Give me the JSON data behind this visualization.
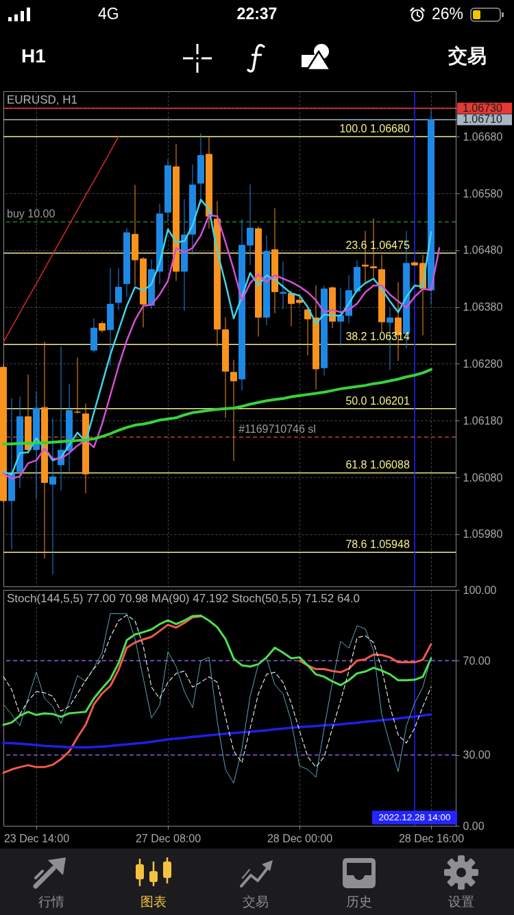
{
  "chart_data": [
    {
      "type": "candlestick",
      "title": "EURUSD, H1",
      "categories": [
        null,
        null,
        null,
        null,
        "23 Dec 14:00",
        null,
        null,
        null,
        null,
        null,
        null,
        null,
        null,
        null,
        null,
        null,
        null,
        null,
        null,
        null,
        "27 Dec 08:00",
        null,
        null,
        null,
        null,
        null,
        null,
        null,
        null,
        null,
        null,
        null,
        null,
        null,
        null,
        null,
        "28 Dec 00:00",
        null,
        null,
        null,
        null,
        null,
        null,
        null,
        null,
        null,
        null,
        null,
        null,
        null,
        "2022.12.28 14:00",
        null,
        "28 Dec 16:00",
        null,
        null,
        null
      ],
      "ohlc": [
        [
          1.06274,
          1.0628,
          1.06036,
          1.06039
        ],
        [
          1.06039,
          1.0622,
          1.05953,
          1.06087
        ],
        [
          1.0609,
          1.06222,
          1.06061,
          1.06187
        ],
        [
          1.06187,
          1.06261,
          1.06125,
          1.06129
        ],
        [
          1.06129,
          1.06232,
          1.06042,
          1.06202
        ],
        [
          1.06203,
          1.06319,
          1.05937,
          1.06071
        ],
        [
          1.06068,
          1.06184,
          1.05909,
          1.06081
        ],
        [
          1.06102,
          1.06311,
          1.06057,
          1.06128
        ],
        [
          1.06127,
          1.06245,
          1.0609,
          1.06198
        ],
        [
          1.06195,
          1.06291,
          1.06192,
          1.06195
        ],
        [
          1.06192,
          1.0621,
          1.06052,
          1.06086
        ],
        [
          1.06304,
          1.0636,
          1.063,
          1.06343
        ],
        [
          1.06351,
          1.06355,
          1.06335,
          1.06339
        ],
        [
          1.0634,
          1.06449,
          1.06276,
          1.06385
        ],
        [
          1.06388,
          1.06449,
          1.06375,
          1.06415
        ],
        [
          1.06421,
          1.06519,
          1.06398,
          1.06511
        ],
        [
          1.06508,
          1.06595,
          1.06418,
          1.06463
        ],
        [
          1.06465,
          1.06468,
          1.06344,
          1.06385
        ],
        [
          1.06383,
          1.06464,
          1.06377,
          1.06446
        ],
        [
          1.06443,
          1.06562,
          1.0642,
          1.06544
        ],
        [
          1.06547,
          1.0664,
          1.0653,
          1.06629
        ],
        [
          1.06627,
          1.06667,
          1.06426,
          1.06443
        ],
        [
          1.06443,
          1.0657,
          1.06373,
          1.06507
        ],
        [
          1.06508,
          1.06631,
          1.06472,
          1.06595
        ],
        [
          1.06598,
          1.06686,
          1.06562,
          1.06647
        ],
        [
          1.06649,
          1.06679,
          1.06518,
          1.0654
        ],
        [
          1.06535,
          1.06566,
          1.06311,
          1.06341
        ],
        [
          1.0634,
          1.06362,
          1.06185,
          1.06267
        ],
        [
          1.06265,
          1.06287,
          1.06109,
          1.0625
        ],
        [
          1.06253,
          1.06535,
          1.06233,
          1.06489
        ],
        [
          1.06489,
          1.06596,
          1.06454,
          1.06519
        ],
        [
          1.06518,
          1.06522,
          1.06328,
          1.06362
        ],
        [
          1.06362,
          1.06506,
          1.06348,
          1.06478
        ],
        [
          1.06481,
          1.06554,
          1.06369,
          1.06407
        ],
        [
          1.06404,
          1.0646,
          1.06376,
          1.06406
        ],
        [
          1.06404,
          1.06408,
          1.06346,
          1.06386
        ],
        [
          1.06392,
          1.06398,
          1.06384,
          1.06388
        ],
        [
          1.06375,
          1.06378,
          1.06295,
          1.06359
        ],
        [
          1.06361,
          1.06418,
          1.06235,
          1.06271
        ],
        [
          1.06273,
          1.06418,
          1.06259,
          1.06412
        ],
        [
          1.06414,
          1.06416,
          1.06343,
          1.06355
        ],
        [
          1.06355,
          1.06414,
          1.06311,
          1.06365
        ],
        [
          1.06365,
          1.06436,
          1.06351,
          1.06409
        ],
        [
          1.06408,
          1.06462,
          1.06405,
          1.0645
        ],
        [
          1.06454,
          1.06514,
          1.06422,
          1.06452
        ],
        [
          1.06451,
          1.06536,
          1.0643,
          1.06449
        ],
        [
          1.06446,
          1.06472,
          1.06335,
          1.06354
        ],
        [
          1.06353,
          1.06378,
          1.06269,
          1.06361
        ],
        [
          1.06361,
          1.06424,
          1.06285,
          1.06331
        ],
        [
          1.06333,
          1.06514,
          1.06307,
          1.06457
        ],
        [
          1.06458,
          1.0646,
          1.06452,
          1.06454
        ],
        [
          1.06457,
          1.06472,
          1.0633,
          1.06413
        ],
        [
          1.0641,
          1.06728,
          1.06384,
          1.0671
        ],
        null,
        null,
        null
      ],
      "colors": [
        "#f7931e",
        "#1e88e5",
        "#1e88e5",
        "#f7931e",
        "#1e88e5",
        "#f7931e",
        "#1e88e5",
        "#1e88e5",
        "#1e88e5",
        "#f7931e",
        "#f7931e",
        "#1e88e5",
        "#f7931e",
        "#1e88e5",
        "#1e88e5",
        "#1e88e5",
        "#f7931e",
        "#f7931e",
        "#1e88e5",
        "#1e88e5",
        "#1e88e5",
        "#f7931e",
        "#1e88e5",
        "#1e88e5",
        "#1e88e5",
        "#f7931e",
        "#f7931e",
        "#f7931e",
        "#f7931e",
        "#1e88e5",
        "#1e88e5",
        "#f7931e",
        "#1e88e5",
        "#f7931e",
        "#1e88e5",
        "#f7931e",
        "#f7931e",
        "#f7931e",
        "#f7931e",
        "#1e88e5",
        "#f7931e",
        "#1e88e5",
        "#1e88e5",
        "#1e88e5",
        "#f7931e",
        "#f7931e",
        "#f7931e",
        "#1e88e5",
        "#f7931e",
        "#1e88e5",
        "#f7931e",
        "#f7931e",
        "#1e88e5",
        null,
        null,
        null
      ],
      "series": [
        {
          "type": "line",
          "color": "#3fd3ea",
          "values": [
            1.0609,
            1.06085,
            1.06123,
            1.06124,
            1.06149,
            1.06131,
            1.0611,
            1.06115,
            1.06137,
            1.06159,
            1.06143,
            1.06194,
            1.06245,
            1.06296,
            1.06339,
            1.06382,
            1.06415,
            1.06409,
            1.0642,
            1.06458,
            1.06517,
            1.06494,
            1.06496,
            1.06524,
            1.06569,
            1.06552,
            1.06478,
            1.06422,
            1.0636,
            1.06398,
            1.0644,
            1.06418,
            1.06436,
            1.06428,
            1.06416,
            1.06404,
            1.064,
            1.0638,
            1.06351,
            1.06367,
            1.06365,
            1.06365,
            1.06386,
            1.0641,
            1.06422,
            1.0643,
            1.06412,
            1.0639,
            1.06371,
            1.06398,
            1.06418,
            1.06416,
            1.06512,
            null,
            null,
            null
          ]
        },
        {
          "type": "line",
          "color": "#d64fd6",
          "values": [
            1.06087,
            1.06078,
            1.06082,
            1.06105,
            1.0611,
            1.06131,
            1.06113,
            1.06113,
            1.06123,
            1.06136,
            1.06146,
            1.06133,
            1.06174,
            1.06225,
            1.06276,
            1.06321,
            1.06357,
            1.06382,
            1.06384,
            1.06402,
            1.06426,
            1.06484,
            1.06476,
            1.06484,
            1.06506,
            1.06542,
            1.0654,
            1.06494,
            1.06446,
            1.06392,
            1.06422,
            1.06438,
            1.06424,
            1.06436,
            1.0643,
            1.06424,
            1.06416,
            1.06406,
            1.06392,
            1.06371,
            1.06375,
            1.06371,
            1.06375,
            1.06386,
            1.06406,
            1.06418,
            1.06418,
            1.06402,
            1.0639,
            1.06379,
            1.06398,
            1.06412,
            1.0641,
            1.06484,
            null,
            null
          ]
        },
        {
          "type": "line",
          "color": "#39d239",
          "values": [
            1.06139,
            1.06139,
            1.0614,
            1.0614,
            1.06141,
            1.06141,
            1.06142,
            1.06143,
            1.06144,
            1.06145,
            1.06146,
            1.06148,
            1.06152,
            1.06157,
            1.06163,
            1.06168,
            1.06172,
            1.06174,
            1.06177,
            1.06181,
            1.06183,
            1.06185,
            1.0619,
            1.06194,
            1.06196,
            1.06198,
            1.062,
            1.06201,
            1.06202,
            1.06205,
            1.06209,
            1.06212,
            1.06215,
            1.06217,
            1.06219,
            1.06222,
            1.06224,
            1.06226,
            1.06228,
            1.0623,
            1.06233,
            1.06236,
            1.06238,
            1.0624,
            1.06242,
            1.06245,
            1.06247,
            1.0625,
            1.06253,
            1.06257,
            1.0626,
            1.06264,
            1.0627,
            null,
            null,
            null
          ]
        },
        {
          "type": "line",
          "color": "#d82a2a",
          "values": [
            1.06318,
            1.06344,
            1.0637,
            1.06396,
            1.06421,
            1.06447,
            1.06473,
            1.06499,
            1.06525,
            1.06551,
            1.06577,
            1.06602,
            1.06628,
            1.06654,
            1.0668,
            null,
            null,
            null,
            null,
            null,
            null,
            null,
            null,
            null,
            null,
            null,
            null,
            null,
            null,
            null,
            null,
            null,
            null,
            null,
            null,
            null,
            null,
            null,
            null,
            null,
            null,
            null,
            null,
            null,
            null,
            null,
            null,
            null,
            null,
            null,
            null,
            null,
            null,
            null,
            null,
            null
          ]
        }
      ],
      "ylim": [
        1.05888,
        1.0676
      ],
      "yticks": [
        {
          "value": 1.0598,
          "label": "1.05980"
        },
        {
          "value": 1.0608,
          "label": "1.06080"
        },
        {
          "value": 1.0618,
          "label": "1.06180"
        },
        {
          "value": 1.0628,
          "label": "1.06280"
        },
        {
          "value": 1.0638,
          "label": "1.06380"
        },
        {
          "value": 1.0648,
          "label": "1.06480"
        },
        {
          "value": 1.0658,
          "label": "1.06580"
        },
        {
          "value": 1.0668,
          "label": "1.06680"
        },
        {
          "value": 1.0671,
          "label": "1.06710"
        },
        {
          "value": 1.0673,
          "label": "1.06730"
        }
      ],
      "tick_labels": "y",
      "grid": true,
      "ref_lines": [
        {
          "axis": "y",
          "value": 1.0673,
          "color": "#e53935"
        },
        {
          "axis": "y",
          "value": 1.0671,
          "color": "#a9b6c4"
        },
        {
          "axis": "y",
          "value": 1.0668,
          "label": "100.0 1.06680",
          "color": "#f4ee8c"
        },
        {
          "axis": "y",
          "value": 1.06475,
          "label": "23.6 1.06475",
          "color": "#f4ee8c"
        },
        {
          "axis": "y",
          "value": 1.06314,
          "label": "38.2 1.06314",
          "color": "#f4ee8c"
        },
        {
          "axis": "y",
          "value": 1.06201,
          "label": "50.0 1.06201",
          "color": "#f4ee8c"
        },
        {
          "axis": "y",
          "value": 1.06088,
          "label": "61.8 1.06088",
          "color": "#f4ee8c"
        },
        {
          "axis": "y",
          "value": 1.05948,
          "label": "78.6 1.05948",
          "color": "#f4ee8c"
        },
        {
          "axis": "y",
          "value": 1.0653,
          "label": "buy 10.00",
          "color": "#2e7d32",
          "line_style": "dashed"
        },
        {
          "axis": "y",
          "value": 1.06151,
          "label": "#1169710746 sl",
          "color": "#b5452c",
          "line_style": "dashed"
        },
        {
          "axis": "x",
          "value": "2022.12.28 14:00",
          "color": "#2424ff"
        }
      ],
      "annotations": [
        "4G",
        "22:37",
        "26%",
        "H1",
        "交易"
      ]
    },
    {
      "type": "line",
      "title": "Stoch(144,5,5) 77.00 70.98 MA(90) 47.192 Stoch(50,5,5) 71.52 64.0",
      "categories": [
        null,
        null,
        null,
        null,
        "23 Dec 14:00",
        null,
        null,
        null,
        null,
        null,
        null,
        null,
        null,
        null,
        null,
        null,
        null,
        null,
        null,
        null,
        "27 Dec 08:00",
        null,
        null,
        null,
        null,
        null,
        null,
        null,
        null,
        null,
        null,
        null,
        null,
        null,
        null,
        null,
        "28 Dec 00:00",
        null,
        null,
        null,
        null,
        null,
        null,
        null,
        null,
        null,
        null,
        null,
        null,
        null,
        "2022.12.28 14:00",
        null,
        "28 Dec 16:00",
        null,
        null,
        null
      ],
      "series": [
        {
          "color": "#f0594c",
          "values": [
            22.5,
            23.9,
            24.9,
            25.7,
            24.9,
            24.9,
            25.9,
            28.3,
            31.5,
            37.5,
            42.8,
            51.5,
            56.1,
            59.3,
            66.1,
            75.5,
            77.7,
            79.0,
            80.1,
            82.6,
            85.2,
            84.0,
            86.0,
            88.4,
            88.8,
            null,
            null,
            null,
            null,
            null,
            null,
            null,
            null,
            null,
            null,
            null,
            70.0,
            68.0,
            66.4,
            66.4,
            65.6,
            65.1,
            66.6,
            70.0,
            70.6,
            72.6,
            72.4,
            71.4,
            69.3,
            69.3,
            69.3,
            70.4,
            77.0,
            null,
            null,
            null
          ]
        },
        {
          "color": "#4fe04f",
          "values": [
            42.8,
            43.8,
            46.7,
            48.3,
            47.0,
            47.7,
            47.4,
            46.2,
            47.7,
            48.0,
            48.3,
            54.0,
            58.3,
            62.2,
            69.0,
            78.7,
            81.1,
            82.1,
            83.2,
            85.5,
            87.1,
            85.5,
            87.0,
            88.9,
            89.1,
            87.0,
            84.2,
            79.2,
            70.9,
            68.0,
            67.5,
            68.5,
            71.4,
            75.5,
            73.4,
            71.0,
            71.4,
            68.0,
            64.2,
            63.2,
            61.2,
            59.6,
            61.7,
            64.6,
            65.4,
            67.0,
            65.8,
            64.2,
            61.7,
            61.7,
            61.9,
            63.2,
            71.0,
            null,
            null,
            null
          ]
        },
        {
          "color": "#1f1fe8",
          "values": [
            35.1,
            35.0,
            34.8,
            34.5,
            34.2,
            33.9,
            33.7,
            33.5,
            33.3,
            33.3,
            33.3,
            33.4,
            33.6,
            33.9,
            34.2,
            34.5,
            34.9,
            35.2,
            35.6,
            36.1,
            36.6,
            37.0,
            37.3,
            37.7,
            38.0,
            38.4,
            38.7,
            39.0,
            39.3,
            39.6,
            39.9,
            40.2,
            40.5,
            40.9,
            41.2,
            41.6,
            41.9,
            42.1,
            42.3,
            42.6,
            42.8,
            43.0,
            43.4,
            43.7,
            44.1,
            44.4,
            44.8,
            45.1,
            45.5,
            45.9,
            46.3,
            46.8,
            47.2,
            null,
            null,
            null
          ]
        },
        {
          "color": "#5aa6bd",
          "values": [
            51.5,
            47.2,
            42.4,
            54.0,
            65.1,
            54.0,
            50.6,
            43.3,
            53.0,
            63.7,
            61.2,
            67.1,
            73.3,
            90.0,
            89.9,
            89.9,
            79.2,
            62.7,
            45.7,
            51.1,
            73.8,
            67.5,
            56.9,
            50.1,
            70.0,
            71.4,
            44.3,
            23.9,
            18.1,
            32.6,
            54.9,
            68.5,
            70.9,
            59.8,
            55.9,
            44.3,
            25.4,
            23.9,
            20.6,
            41.4,
            60.8,
            78.2,
            75.3,
            84.8,
            83.5,
            74.3,
            47.2,
            34.6,
            23.0,
            42.4,
            52.0,
            58.8,
            71.5,
            null,
            null,
            null
          ]
        },
        {
          "color": "#e6e6e6",
          "line_style": "dashed",
          "values": [
            63.2,
            57.8,
            47.2,
            53.0,
            56.9,
            56.4,
            54.9,
            48.6,
            50.6,
            56.0,
            61.7,
            66.6,
            70.9,
            80.1,
            86.9,
            89.3,
            86.9,
            76.3,
            58.8,
            54.0,
            60.8,
            64.6,
            65.6,
            58.8,
            60.8,
            63.2,
            60.8,
            46.2,
            31.7,
            26.8,
            41.4,
            56.0,
            64.2,
            65.1,
            60.8,
            52.0,
            40.4,
            29.3,
            24.9,
            29.3,
            41.4,
            53.0,
            65.6,
            79.7,
            80.6,
            77.7,
            66.6,
            50.6,
            38.5,
            35.1,
            41.4,
            50.6,
            58.8,
            null,
            null,
            null
          ]
        }
      ],
      "ylim": [
        0,
        100
      ],
      "yticks": [
        {
          "value": 0,
          "label": "0.00"
        },
        {
          "value": 30,
          "label": "30.00"
        },
        {
          "value": 70,
          "label": "70.00"
        },
        {
          "value": 100,
          "label": "100.00"
        }
      ],
      "grid": "x",
      "ref_lines": [
        {
          "axis": "y",
          "value": 70,
          "color": "#8e5bd9",
          "line_style": "dashed"
        },
        {
          "axis": "y",
          "value": 30,
          "color": "#8e5bd9",
          "line_style": "dashed"
        },
        {
          "axis": "x",
          "value": "2022.12.28 14:00",
          "color": "#2424ff"
        }
      ],
      "annotations": [
        "行情",
        "图表",
        "交易",
        "历史",
        "设置"
      ]
    }
  ]
}
